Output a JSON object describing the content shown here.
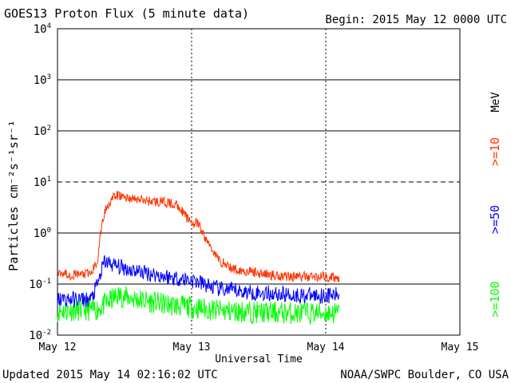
{
  "chart_data": {
    "type": "line",
    "title": "GOES13 Proton Flux (5 minute data)",
    "begin_label": "Begin: 2015 May 12 0000 UTC",
    "xlabel": "Universal Time",
    "ylabel": "Particles cm⁻²s⁻¹sr⁻¹",
    "x_tick_labels": [
      "May 12",
      "May 13",
      "May 14",
      "May 15"
    ],
    "x_range_days": [
      0,
      3
    ],
    "y_scale": "log",
    "ylim": [
      0.01,
      10000
    ],
    "y_ticks": [
      {
        "base": "10",
        "exp": "4"
      },
      {
        "base": "10",
        "exp": "3"
      },
      {
        "base": "10",
        "exp": "2"
      },
      {
        "base": "10",
        "exp": "1"
      },
      {
        "base": "10",
        "exp": "0"
      },
      {
        "base": "10",
        "exp": "-1"
      },
      {
        "base": "10",
        "exp": "-2"
      }
    ],
    "unit_label": "MeV",
    "series": [
      {
        "name": ">=10",
        "color": "#ff3300",
        "points": [
          [
            0.0,
            0.18
          ],
          [
            0.1,
            0.15
          ],
          [
            0.25,
            0.16
          ],
          [
            0.3,
            0.3
          ],
          [
            0.33,
            1.5
          ],
          [
            0.36,
            3.0
          ],
          [
            0.4,
            4.5
          ],
          [
            0.45,
            5.5
          ],
          [
            0.5,
            5.0
          ],
          [
            0.6,
            4.5
          ],
          [
            0.7,
            4.2
          ],
          [
            0.8,
            4.0
          ],
          [
            0.9,
            3.5
          ],
          [
            0.95,
            2.2
          ],
          [
            1.0,
            1.6
          ],
          [
            1.05,
            1.5
          ],
          [
            1.1,
            0.8
          ],
          [
            1.15,
            0.5
          ],
          [
            1.2,
            0.3
          ],
          [
            1.3,
            0.2
          ],
          [
            1.4,
            0.18
          ],
          [
            1.6,
            0.15
          ],
          [
            1.8,
            0.14
          ],
          [
            2.0,
            0.14
          ],
          [
            2.1,
            0.13
          ]
        ]
      },
      {
        "name": ">=50",
        "color": "#0000ff",
        "points": [
          [
            0.0,
            0.05
          ],
          [
            0.25,
            0.05
          ],
          [
            0.3,
            0.1
          ],
          [
            0.35,
            0.28
          ],
          [
            0.45,
            0.22
          ],
          [
            0.6,
            0.18
          ],
          [
            0.8,
            0.14
          ],
          [
            1.0,
            0.12
          ],
          [
            1.2,
            0.08
          ],
          [
            1.4,
            0.07
          ],
          [
            1.6,
            0.065
          ],
          [
            1.8,
            0.06
          ],
          [
            2.0,
            0.06
          ],
          [
            2.1,
            0.06
          ]
        ]
      },
      {
        "name": ">=100",
        "color": "#00ff00",
        "points": [
          [
            0.0,
            0.03
          ],
          [
            0.3,
            0.032
          ],
          [
            0.45,
            0.06
          ],
          [
            0.6,
            0.05
          ],
          [
            0.8,
            0.04
          ],
          [
            1.0,
            0.035
          ],
          [
            1.2,
            0.03
          ],
          [
            1.5,
            0.028
          ],
          [
            1.8,
            0.027
          ],
          [
            2.1,
            0.027
          ]
        ]
      }
    ],
    "grid": true,
    "legend_placement": "right"
  },
  "footer": {
    "updated": "Updated 2015 May 14 02:16:02 UTC",
    "credit": "NOAA/SWPC Boulder, CO USA"
  }
}
